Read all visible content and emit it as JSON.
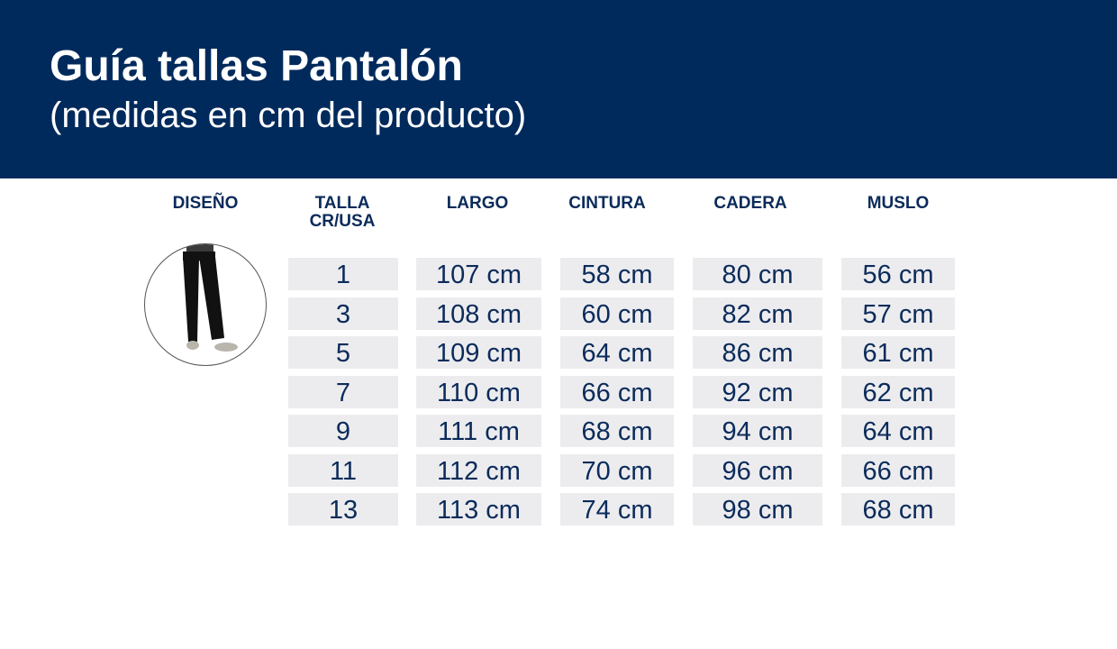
{
  "header": {
    "title": "Guía tallas Pantalón",
    "subtitle": "(medidas en cm del producto)"
  },
  "columns": {
    "diseno": "DISEÑO",
    "talla_line1": "TALLA",
    "talla_line2": "CR/USA",
    "largo": "LARGO",
    "cintura": "CINTURA",
    "cadera": "CADERA",
    "muslo": "MUSLO"
  },
  "design_image": {
    "icon": "pants-model-icon",
    "colors": {
      "pants": "#111111",
      "shoes": "#b9b5ac"
    }
  },
  "colors": {
    "header_bg": "#002a5c",
    "text": "#0b2b5a",
    "cell_bg": "#ececef"
  },
  "rows": [
    {
      "talla": "1",
      "largo": "107 cm",
      "cintura": "58 cm",
      "cadera": "80 cm",
      "muslo": "56 cm"
    },
    {
      "talla": "3",
      "largo": "108 cm",
      "cintura": "60 cm",
      "cadera": "82 cm",
      "muslo": "57 cm"
    },
    {
      "talla": "5",
      "largo": "109 cm",
      "cintura": "64 cm",
      "cadera": "86 cm",
      "muslo": "61 cm"
    },
    {
      "talla": "7",
      "largo": "110 cm",
      "cintura": "66 cm",
      "cadera": "92 cm",
      "muslo": "62 cm"
    },
    {
      "talla": "9",
      "largo": "111 cm",
      "cintura": "68 cm",
      "cadera": "94 cm",
      "muslo": "64 cm"
    },
    {
      "talla": "11",
      "largo": "112 cm",
      "cintura": "70 cm",
      "cadera": "96 cm",
      "muslo": "66 cm"
    },
    {
      "talla": "13",
      "largo": "113 cm",
      "cintura": "74 cm",
      "cadera": "98 cm",
      "muslo": "68 cm"
    }
  ]
}
